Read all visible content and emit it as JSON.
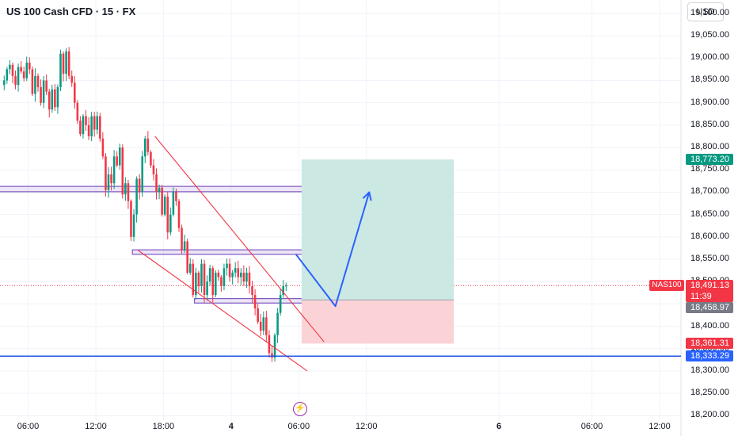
{
  "header": {
    "title": "US 100 Cash CFD · 15 · FX",
    "currency": "USD"
  },
  "colors": {
    "up": "#089981",
    "down": "#f23645",
    "channel": "#f23645",
    "zone": "#7e57c2",
    "arrow": "#2962ff",
    "support": "#1e53e5",
    "target_fill": "#cce8e3",
    "stop_fill": "#fbd3d6"
  },
  "price_labels": {
    "target": "18,773.20",
    "current": "18,491.13",
    "countdown": "11:39",
    "entry": "18,458.97",
    "stop": "18,361.31",
    "support": "18,333.29",
    "symbol": "NAS100"
  },
  "bolt_icon": "lightning-bolt-icon",
  "chart_data": {
    "type": "candlestick",
    "title": "US 100 Cash CFD · 15 · FX",
    "currency": "USD",
    "ylim": [
      18190,
      19130
    ],
    "y_ticks": [
      "19,100.00",
      "19,050.00",
      "19,000.00",
      "18,950.00",
      "18,900.00",
      "18,850.00",
      "18,800.00",
      "18,750.00",
      "18,700.00",
      "18,650.00",
      "18,600.00",
      "18,550.00",
      "18,500.00",
      "18,450.00",
      "18,400.00",
      "18,350.00",
      "18,300.00",
      "18,250.00",
      "18,200.00"
    ],
    "y_tick_values": [
      19100,
      19050,
      19000,
      18950,
      18900,
      18850,
      18800,
      18750,
      18700,
      18650,
      18600,
      18550,
      18500,
      18450,
      18400,
      18350,
      18300,
      18250,
      18200
    ],
    "x_ticks": [
      {
        "label": "06:00",
        "bar": 9,
        "bold": false
      },
      {
        "label": "12:00",
        "bar": 33,
        "bold": false
      },
      {
        "label": "18:00",
        "bar": 57,
        "bold": false
      },
      {
        "label": "4",
        "bar": 81,
        "bold": true
      },
      {
        "label": "06:00",
        "bar": 105,
        "bold": false
      },
      {
        "label": "12:00",
        "bar": 129,
        "bold": false
      },
      {
        "label": "6",
        "bar": 176,
        "bold": true
      },
      {
        "label": "06:00",
        "bar": 209,
        "bold": false
      },
      {
        "label": "12:00",
        "bar": 233,
        "bold": false
      }
    ],
    "closes": [
      18950,
      18975,
      18985,
      18960,
      18940,
      18980,
      18970,
      18955,
      18990,
      18975,
      18920,
      18960,
      18935,
      18900,
      18950,
      18925,
      18885,
      18930,
      18890,
      18935,
      19010,
      18965,
      19015,
      18960,
      18945,
      18900,
      18860,
      18830,
      18870,
      18850,
      18825,
      18870,
      18840,
      18870,
      18820,
      18780,
      18705,
      18740,
      18720,
      18780,
      18760,
      18800,
      18695,
      18720,
      18680,
      18600,
      18650,
      18730,
      18700,
      18780,
      18820,
      18790,
      18760,
      18740,
      18700,
      18710,
      18650,
      18690,
      18610,
      18650,
      18700,
      18680,
      18620,
      18570,
      18590,
      18520,
      18540,
      18470,
      18520,
      18490,
      18540,
      18470,
      18500,
      18530,
      18470,
      18520,
      18510,
      18490,
      18530,
      18540,
      18510,
      18520,
      18530,
      18510,
      18520,
      18500,
      18520,
      18490,
      18470,
      18440,
      18410,
      18390,
      18420,
      18380,
      18340,
      18330,
      18380,
      18430,
      18470,
      18490,
      18491
    ],
    "extra_open": 18940,
    "range_min": 18320,
    "range_max": 19025,
    "horizontal_lines": [
      {
        "name": "support",
        "price": 18333.29
      }
    ],
    "zones": [
      {
        "from_bar": -3,
        "to_bar": 124,
        "low": 18701,
        "high": 18713
      },
      {
        "from_bar": 46,
        "to_bar": 117,
        "low": 18561,
        "high": 18571
      },
      {
        "from_bar": 68,
        "to_bar": 131,
        "low": 18452,
        "high": 18462
      }
    ],
    "channel": [
      {
        "bar1": 54,
        "p1": 18825,
        "bar2": 114,
        "p2": 18365
      },
      {
        "bar1": 48,
        "p1": 18570,
        "bar2": 108,
        "p2": 18300
      }
    ],
    "position": {
      "from_bar": 106,
      "to_bar": 160,
      "entry": 18458.97,
      "target": 18773.2,
      "stop": 18361.31
    },
    "projection": [
      {
        "bar": 104,
        "price": 18561
      },
      {
        "bar": 118,
        "price": 18445
      },
      {
        "bar": 130,
        "price": 18700
      }
    ]
  }
}
